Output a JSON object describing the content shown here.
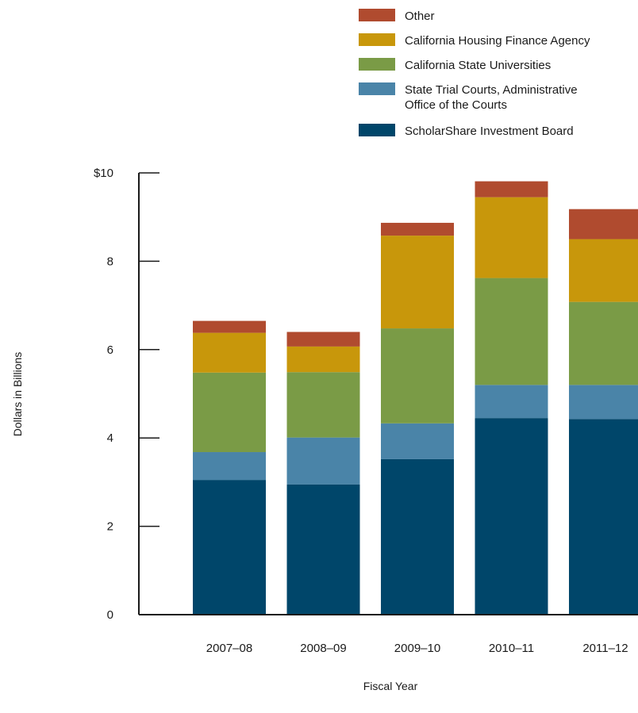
{
  "chart_data": {
    "type": "bar",
    "stacked": true,
    "categories": [
      "2007–08",
      "2008–09",
      "2009–10",
      "2010–11",
      "2011–12"
    ],
    "series": [
      {
        "name": "ScholarShare Investment Board",
        "color": "#00466a",
        "values": [
          3.05,
          2.95,
          3.52,
          4.45,
          4.43
        ]
      },
      {
        "name": "State Trial Courts, Administrative Office of the Courts",
        "color": "#4a84a8",
        "values": [
          0.63,
          1.06,
          0.81,
          0.75,
          0.77
        ]
      },
      {
        "name": "California State Universities",
        "color": "#7a9b46",
        "values": [
          1.8,
          1.48,
          2.15,
          2.42,
          1.88
        ]
      },
      {
        "name": "California Housing Finance Agency",
        "color": "#c8970b",
        "values": [
          0.9,
          0.58,
          2.1,
          1.83,
          1.42
        ]
      },
      {
        "name": "Other",
        "color": "#b04b2f",
        "values": [
          0.27,
          0.33,
          0.29,
          0.36,
          0.68
        ]
      }
    ],
    "legend_order": [
      "Other",
      "California Housing Finance Agency",
      "California State Universities",
      "State Trial Courts, Administrative Office of the Courts",
      "ScholarShare Investment Board"
    ],
    "legend_lines": {
      "Other": [
        "Other"
      ],
      "California Housing Finance Agency": [
        "California Housing Finance Agency"
      ],
      "California State Universities": [
        "California State Universities"
      ],
      "State Trial Courts, Administrative Office of the Courts": [
        "State Trial Courts, Administrative",
        " Office of the Courts"
      ],
      "ScholarShare Investment Board": [
        "ScholarShare Investment Board"
      ]
    },
    "yticks": [
      "0",
      "2",
      "4",
      "6",
      "8",
      "$10"
    ],
    "ylim": [
      0,
      10
    ],
    "ylabel": "Dollars in Billions",
    "xlabel": "Fiscal Year",
    "grid": false,
    "legend_position": "top-right"
  }
}
